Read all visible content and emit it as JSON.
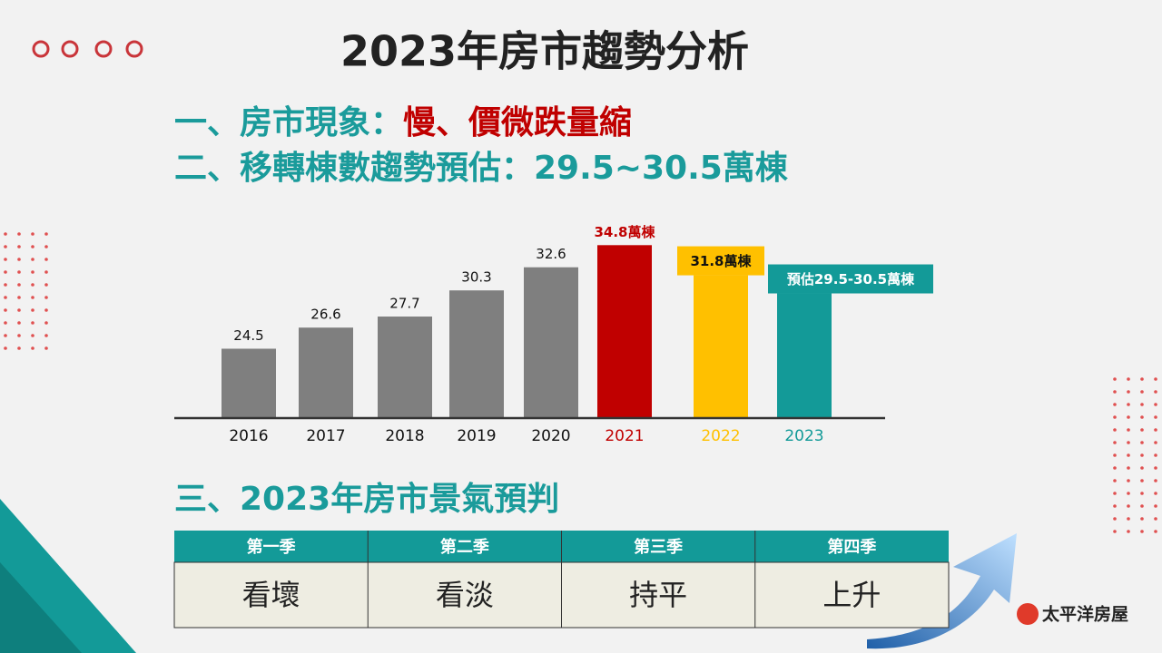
{
  "header": {
    "title": "2023年房市趨勢分析"
  },
  "points": [
    {
      "label": "一、房市現象：",
      "highlight": "慢、價微跌量縮"
    },
    {
      "label": "二、移轉棟數趨勢預估：29.5~30.5萬棟"
    }
  ],
  "chart_data": {
    "type": "bar",
    "categories": [
      "2016",
      "2017",
      "2018",
      "2019",
      "2020",
      "2021",
      "2022",
      "2023"
    ],
    "values": [
      24.5,
      26.6,
      27.7,
      30.3,
      32.6,
      34.8,
      31.8,
      30
    ],
    "value_labels": [
      "24.5",
      "26.6",
      "27.7",
      "30.3",
      "32.6",
      "34.8萬棟",
      "31.8萬棟",
      "預估29.5-30.5萬棟"
    ],
    "colors": [
      "#7f7f7f",
      "#7f7f7f",
      "#7f7f7f",
      "#7f7f7f",
      "#7f7f7f",
      "#c00000",
      "#ffc000",
      "#139a98"
    ],
    "ylim": [
      17.6,
      36
    ]
  },
  "forecast": {
    "title": "三、2023年房市景氣預判",
    "table": {
      "header": [
        "第一季",
        "第二季",
        "第三季",
        "第四季"
      ],
      "rows": [
        [
          "看壞",
          "看淡",
          "持平",
          "上升"
        ]
      ]
    }
  },
  "logo": "太平洋房屋"
}
